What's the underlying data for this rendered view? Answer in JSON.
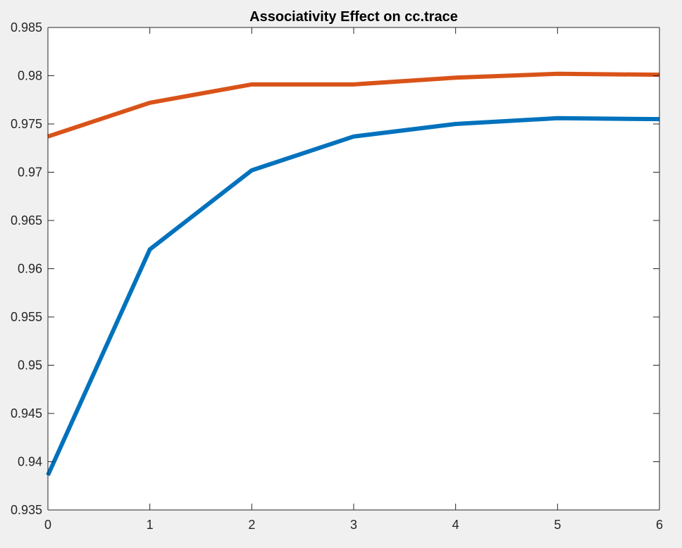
{
  "chart_data": {
    "type": "line",
    "title": "Associativity Effect on cc.trace",
    "xlabel": "",
    "ylabel": "",
    "xlim": [
      0,
      6
    ],
    "ylim": [
      0.935,
      0.985
    ],
    "x_ticks": [
      0,
      1,
      2,
      3,
      4,
      5,
      6
    ],
    "x_tick_labels": [
      "0",
      "1",
      "2",
      "3",
      "4",
      "5",
      "6"
    ],
    "y_ticks": [
      0.935,
      0.94,
      0.945,
      0.95,
      0.955,
      0.96,
      0.965,
      0.97,
      0.975,
      0.98,
      0.985
    ],
    "y_tick_labels": [
      "0.935",
      "0.94",
      "0.945",
      "0.95",
      "0.955",
      "0.96",
      "0.965",
      "0.97",
      "0.975",
      "0.98",
      "0.985"
    ],
    "grid": false,
    "legend": "none",
    "x": [
      0,
      1,
      2,
      3,
      4,
      5,
      6
    ],
    "series": [
      {
        "color": "#0072bd",
        "values": [
          0.9386,
          0.962,
          0.9702,
          0.9737,
          0.975,
          0.9756,
          0.9755
        ]
      },
      {
        "color": "#d95319",
        "values": [
          0.9737,
          0.9772,
          0.9791,
          0.9791,
          0.9798,
          0.9802,
          0.9801
        ]
      }
    ],
    "colors": {
      "axes_background": "#ffffff",
      "figure_background": "#f0f0f0",
      "axis_line": "#262626"
    }
  }
}
